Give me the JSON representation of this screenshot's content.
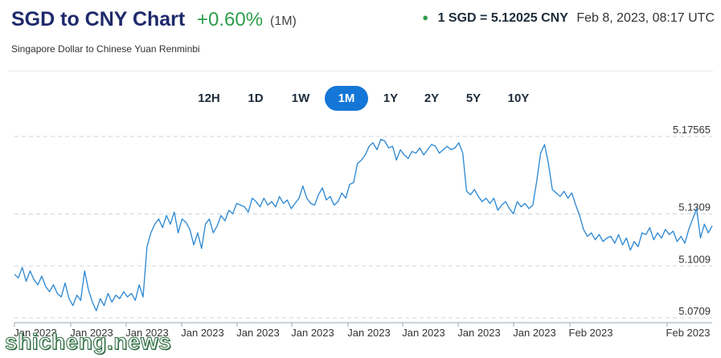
{
  "header": {
    "title": "SGD to CNY Chart",
    "change": "+0.60%",
    "change_period": "(1M)",
    "rate_text": "1 SGD = 5.12025 CNY",
    "timestamp": "Feb 8, 2023, 08:17 UTC",
    "subtitle": "Singapore Dollar to Chinese Yuan Renminbi"
  },
  "tabs": [
    {
      "label": "12H",
      "active": false
    },
    {
      "label": "1D",
      "active": false
    },
    {
      "label": "1W",
      "active": false
    },
    {
      "label": "1M",
      "active": true
    },
    {
      "label": "1Y",
      "active": false
    },
    {
      "label": "2Y",
      "active": false
    },
    {
      "label": "5Y",
      "active": false
    },
    {
      "label": "10Y",
      "active": false
    }
  ],
  "watermark": "shicheng.news",
  "colors": {
    "line": "#2a86d1",
    "active_tab": "#1476d6",
    "positive": "#2e9d4a",
    "title": "#1f2a6b"
  },
  "chart_data": {
    "type": "line",
    "title": "",
    "xlabel": "",
    "ylabel": "",
    "y_ticks": [
      "5.17565",
      "5.1309",
      "5.1009",
      "5.0709"
    ],
    "y_tick_values": [
      5.17565,
      5.1309,
      5.1009,
      5.0709
    ],
    "ylim": [
      5.0709,
      5.17565
    ],
    "x_tick_labels": [
      "Jan 2023",
      "Jan 2023",
      "Jan 2023",
      "Jan 2023",
      "Jan 2023",
      "Jan 2023",
      "Jan 2023",
      "Jan 2023",
      "Jan 2023",
      "Jan 2023",
      "Feb 2023",
      "Feb 2023"
    ],
    "x_range": [
      "Jan 8, 2023",
      "Feb 8, 2023"
    ],
    "grid": true,
    "series": [
      {
        "values": [
          5.096,
          5.094,
          5.1,
          5.092,
          5.098,
          5.093,
          5.09,
          5.095,
          5.089,
          5.086,
          5.09,
          5.085,
          5.083,
          5.091,
          5.082,
          5.078,
          5.084,
          5.081,
          5.098,
          5.087,
          5.08,
          5.075,
          5.082,
          5.078,
          5.085,
          5.08,
          5.084,
          5.082,
          5.086,
          5.083,
          5.085,
          5.081,
          5.09,
          5.083,
          5.112,
          5.12,
          5.125,
          5.128,
          5.123,
          5.13,
          5.125,
          5.132,
          5.12,
          5.128,
          5.126,
          5.122,
          5.113,
          5.12,
          5.111,
          5.125,
          5.128,
          5.12,
          5.124,
          5.13,
          5.127,
          5.133,
          5.131,
          5.137,
          5.136,
          5.135,
          5.132,
          5.14,
          5.138,
          5.135,
          5.14,
          5.136,
          5.138,
          5.135,
          5.141,
          5.137,
          5.139,
          5.134,
          5.137,
          5.14,
          5.147,
          5.14,
          5.137,
          5.136,
          5.142,
          5.146,
          5.139,
          5.141,
          5.136,
          5.138,
          5.143,
          5.14,
          5.148,
          5.149,
          5.16,
          5.162,
          5.165,
          5.17,
          5.172,
          5.168,
          5.174,
          5.173,
          5.169,
          5.17,
          5.162,
          5.168,
          5.165,
          5.163,
          5.167,
          5.166,
          5.169,
          5.165,
          5.168,
          5.171,
          5.17,
          5.166,
          5.168,
          5.17,
          5.168,
          5.169,
          5.172,
          5.166,
          5.144,
          5.142,
          5.145,
          5.141,
          5.138,
          5.14,
          5.137,
          5.14,
          5.133,
          5.136,
          5.138,
          5.134,
          5.131,
          5.138,
          5.135,
          5.137,
          5.134,
          5.136,
          5.15,
          5.166,
          5.171,
          5.16,
          5.145,
          5.143,
          5.141,
          5.144,
          5.14,
          5.143,
          5.136,
          5.13,
          5.122,
          5.118,
          5.12,
          5.116,
          5.119,
          5.115,
          5.117,
          5.118,
          5.114,
          5.119,
          5.113,
          5.117,
          5.11,
          5.115,
          5.112,
          5.12,
          5.119,
          5.123,
          5.116,
          5.12,
          5.117,
          5.122,
          5.119,
          5.121,
          5.115,
          5.118,
          5.114,
          5.122,
          5.128,
          5.134,
          5.117,
          5.125,
          5.12,
          5.124
        ]
      }
    ]
  }
}
